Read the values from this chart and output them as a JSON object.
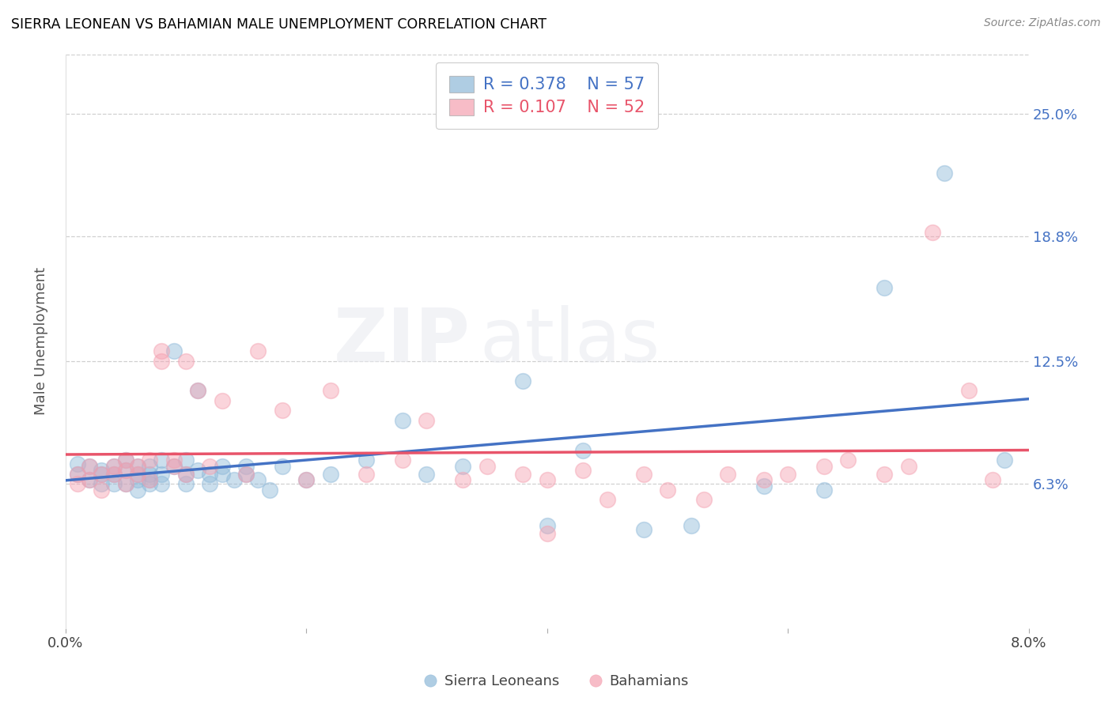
{
  "title": "SIERRA LEONEAN VS BAHAMIAN MALE UNEMPLOYMENT CORRELATION CHART",
  "source": "Source: ZipAtlas.com",
  "ylabel": "Male Unemployment",
  "xlim": [
    0.0,
    0.08
  ],
  "ylim": [
    -0.01,
    0.28
  ],
  "ytick_positions": [
    0.063,
    0.125,
    0.188,
    0.25
  ],
  "right_ytick_labels": [
    "6.3%",
    "12.5%",
    "18.8%",
    "25.0%"
  ],
  "legend_r1": "R = 0.378",
  "legend_n1": "N = 57",
  "legend_r2": "R = 0.107",
  "legend_n2": "N = 52",
  "sierra_color": "#8db8d8",
  "bahamian_color": "#f4a0b0",
  "sierra_line_color": "#4472c4",
  "bahamian_line_color": "#e8546a",
  "watermark_zip": "ZIP",
  "watermark_atlas": "atlas",
  "sierra_x": [
    0.001,
    0.001,
    0.002,
    0.002,
    0.003,
    0.003,
    0.003,
    0.004,
    0.004,
    0.004,
    0.005,
    0.005,
    0.005,
    0.006,
    0.006,
    0.006,
    0.006,
    0.007,
    0.007,
    0.007,
    0.007,
    0.008,
    0.008,
    0.008,
    0.009,
    0.009,
    0.01,
    0.01,
    0.01,
    0.011,
    0.011,
    0.012,
    0.012,
    0.013,
    0.013,
    0.014,
    0.015,
    0.015,
    0.016,
    0.017,
    0.018,
    0.02,
    0.022,
    0.025,
    0.028,
    0.03,
    0.033,
    0.038,
    0.04,
    0.043,
    0.048,
    0.052,
    0.058,
    0.063,
    0.068,
    0.073,
    0.078
  ],
  "sierra_y": [
    0.068,
    0.073,
    0.065,
    0.072,
    0.068,
    0.07,
    0.063,
    0.072,
    0.068,
    0.063,
    0.07,
    0.075,
    0.063,
    0.068,
    0.072,
    0.065,
    0.06,
    0.072,
    0.068,
    0.065,
    0.063,
    0.075,
    0.068,
    0.063,
    0.072,
    0.13,
    0.068,
    0.075,
    0.063,
    0.07,
    0.11,
    0.068,
    0.063,
    0.072,
    0.068,
    0.065,
    0.072,
    0.068,
    0.065,
    0.06,
    0.072,
    0.065,
    0.068,
    0.075,
    0.095,
    0.068,
    0.072,
    0.115,
    0.042,
    0.08,
    0.04,
    0.042,
    0.062,
    0.06,
    0.162,
    0.22,
    0.075
  ],
  "bahamian_x": [
    0.001,
    0.001,
    0.002,
    0.002,
    0.003,
    0.003,
    0.004,
    0.004,
    0.005,
    0.005,
    0.005,
    0.006,
    0.006,
    0.007,
    0.007,
    0.008,
    0.008,
    0.009,
    0.009,
    0.01,
    0.01,
    0.011,
    0.012,
    0.013,
    0.015,
    0.016,
    0.018,
    0.02,
    0.022,
    0.025,
    0.028,
    0.03,
    0.033,
    0.035,
    0.038,
    0.04,
    0.043,
    0.045,
    0.048,
    0.05,
    0.053,
    0.055,
    0.058,
    0.06,
    0.063,
    0.065,
    0.068,
    0.07,
    0.072,
    0.075,
    0.077,
    0.04
  ],
  "bahamian_y": [
    0.068,
    0.063,
    0.072,
    0.065,
    0.068,
    0.06,
    0.072,
    0.068,
    0.075,
    0.07,
    0.063,
    0.068,
    0.072,
    0.065,
    0.075,
    0.13,
    0.125,
    0.072,
    0.075,
    0.068,
    0.125,
    0.11,
    0.072,
    0.105,
    0.068,
    0.13,
    0.1,
    0.065,
    0.11,
    0.068,
    0.075,
    0.095,
    0.065,
    0.072,
    0.068,
    0.065,
    0.07,
    0.055,
    0.068,
    0.06,
    0.055,
    0.068,
    0.065,
    0.068,
    0.072,
    0.075,
    0.068,
    0.072,
    0.19,
    0.11,
    0.065,
    0.038
  ]
}
